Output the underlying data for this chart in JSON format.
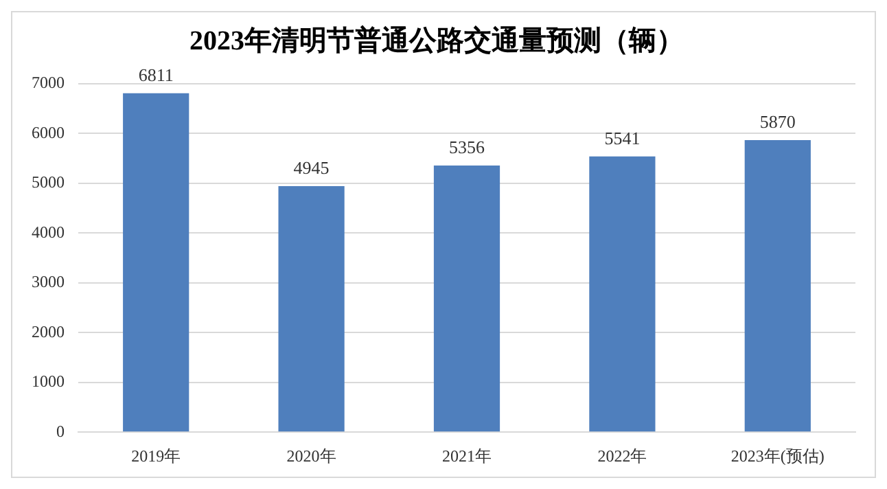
{
  "chart_data": {
    "type": "bar",
    "title": "2023年清明节普通公路交通量预测（辆）",
    "categories": [
      "2019年",
      "2020年",
      "2021年",
      "2022年",
      "2023年(预估)"
    ],
    "values": [
      6811,
      4945,
      5356,
      5541,
      5870
    ],
    "color": "#4f7fbd",
    "ylim": [
      0,
      7000
    ],
    "yticks": [
      0,
      1000,
      2000,
      3000,
      4000,
      5000,
      6000,
      7000
    ],
    "grid": "y",
    "data_labels": true,
    "legend": false
  }
}
